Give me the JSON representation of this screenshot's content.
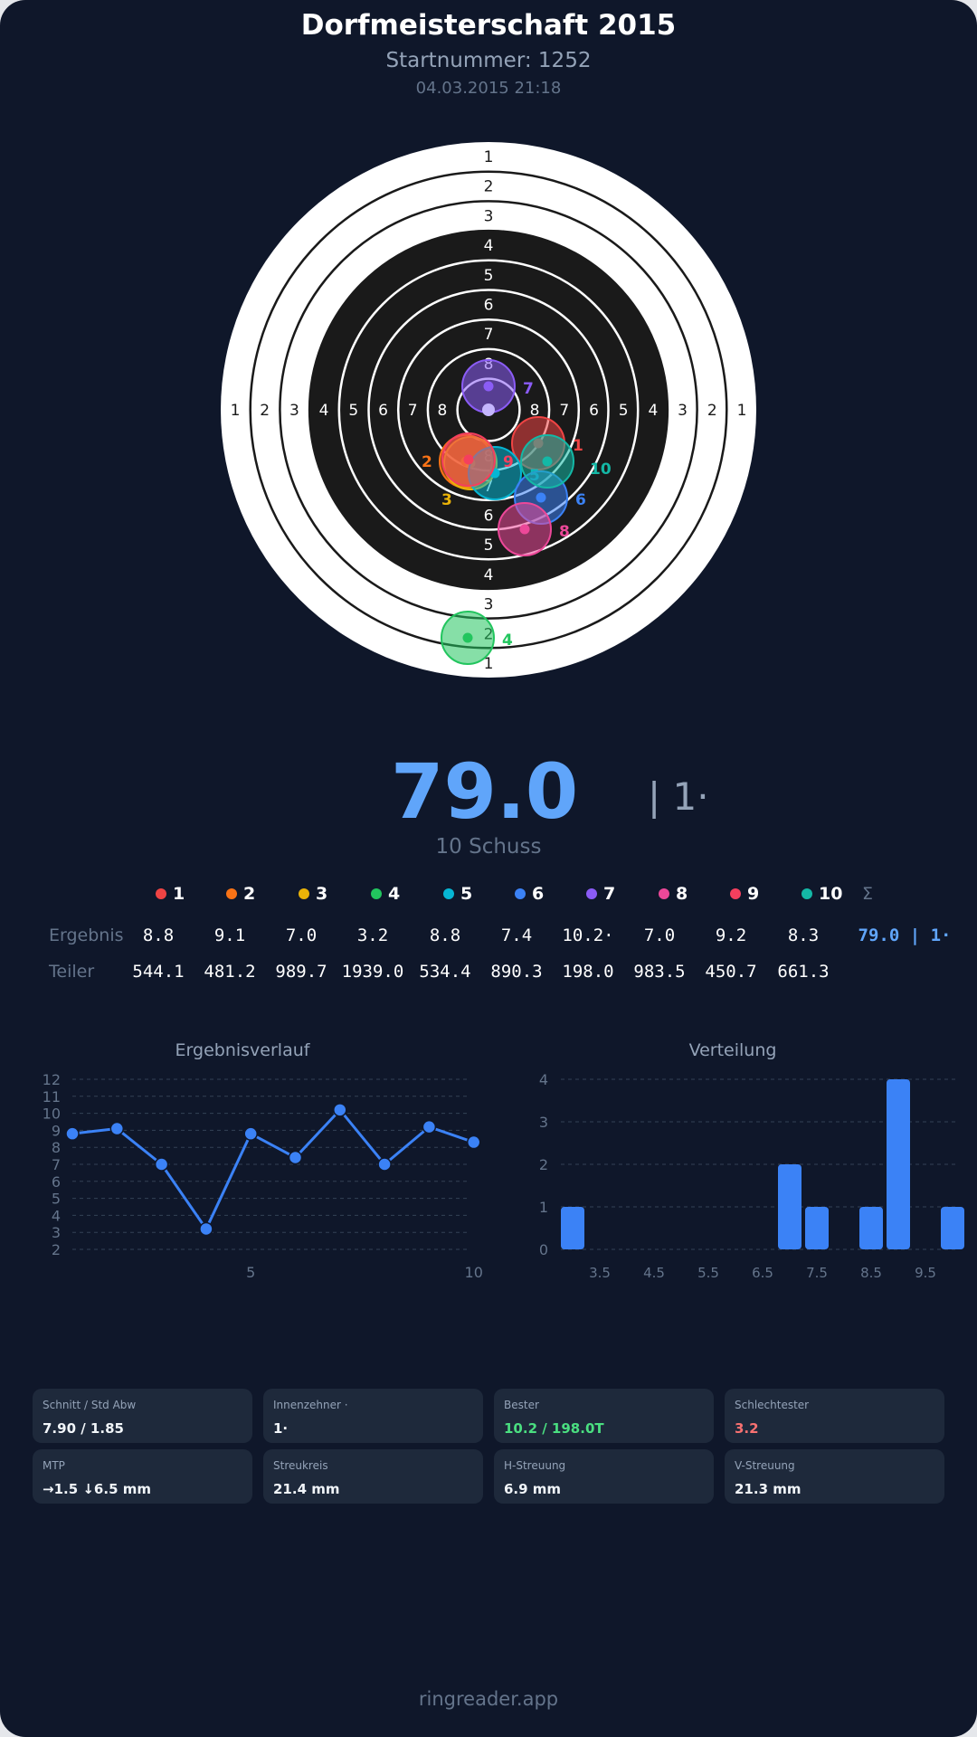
{
  "header": {
    "title": "Dorfmeisterschaft 2015",
    "start_number": "Startnummer: 1252",
    "datetime": "04.03.2015 21:18"
  },
  "target": {
    "ring_labels": [
      "1",
      "2",
      "3",
      "4",
      "5",
      "6",
      "7",
      "8"
    ]
  },
  "shots": [
    {
      "n": "1",
      "color": "#ef4444",
      "result": "8.8",
      "teiler": "544.1"
    },
    {
      "n": "2",
      "color": "#f97316",
      "result": "9.1",
      "teiler": "481.2"
    },
    {
      "n": "3",
      "color": "#eab308",
      "result": "7.0",
      "teiler": "989.7"
    },
    {
      "n": "4",
      "color": "#22c55e",
      "result": "3.2",
      "teiler": "1939.0"
    },
    {
      "n": "5",
      "color": "#06b6d4",
      "result": "8.8",
      "teiler": "534.4"
    },
    {
      "n": "6",
      "color": "#3b82f6",
      "result": "7.4",
      "teiler": "890.3"
    },
    {
      "n": "7",
      "color": "#8b5cf6",
      "result": "10.2·",
      "teiler": "198.0"
    },
    {
      "n": "8",
      "color": "#ec4899",
      "result": "7.0",
      "teiler": "983.5"
    },
    {
      "n": "9",
      "color": "#f43f5e",
      "result": "9.2",
      "teiler": "450.7"
    },
    {
      "n": "10",
      "color": "#14b8a6",
      "result": "8.3",
      "teiler": "661.3"
    }
  ],
  "summary": {
    "score": "79.0",
    "separator": "| 1·",
    "shots_count": "10 Schuss",
    "sigma": "Σ",
    "total": "79.0 | 1·"
  },
  "table": {
    "row_result": "Ergebnis",
    "row_teiler": "Teiler"
  },
  "chart_data": [
    {
      "type": "line",
      "title": "Ergebnisverlauf",
      "x": [
        1,
        2,
        3,
        4,
        5,
        6,
        7,
        8,
        9,
        10
      ],
      "values": [
        8.8,
        9.1,
        7.0,
        3.2,
        8.8,
        7.4,
        10.2,
        7.0,
        9.2,
        8.3
      ],
      "ylim": [
        2,
        12
      ],
      "yticks": [
        "2",
        "3",
        "4",
        "5",
        "6",
        "7",
        "8",
        "9",
        "10",
        "11",
        "12"
      ],
      "xticks": [
        "5",
        "10"
      ],
      "grid": true,
      "color": "#3b82f6"
    },
    {
      "type": "bar",
      "title": "Verteilung",
      "categories": [
        3.0,
        7.0,
        7.5,
        8.5,
        9.0,
        10.0
      ],
      "values": [
        1,
        2,
        1,
        1,
        4,
        1
      ],
      "xlim": [
        2.75,
        10.25
      ],
      "ylim": [
        0,
        4
      ],
      "yticks": [
        "0",
        "1",
        "2",
        "3",
        "4"
      ],
      "xticks": [
        "3.5",
        "4.5",
        "5.5",
        "6.5",
        "7.5",
        "8.5",
        "9.5"
      ],
      "grid": true,
      "color": "#3b82f6"
    }
  ],
  "stats": [
    {
      "label": "Schnitt / Std Abw",
      "value": "7.90 / 1.85",
      "color": "#f1f5f9"
    },
    {
      "label": "Innenzehner ·",
      "value": "1·",
      "color": "#f1f5f9"
    },
    {
      "label": "Bester",
      "value": "10.2 / 198.0T",
      "color": "#4ade80"
    },
    {
      "label": "Schlechtester",
      "value": "3.2",
      "color": "#f87171"
    },
    {
      "label": "MTP",
      "value": "→1.5 ↓6.5 mm",
      "color": "#f1f5f9"
    },
    {
      "label": "Streukreis",
      "value": "21.4 mm",
      "color": "#f1f5f9"
    },
    {
      "label": "H-Streuung",
      "value": "6.9 mm",
      "color": "#f1f5f9"
    },
    {
      "label": "V-Streuung",
      "value": "21.3 mm",
      "color": "#f1f5f9"
    }
  ],
  "footer": "ringreader.app"
}
